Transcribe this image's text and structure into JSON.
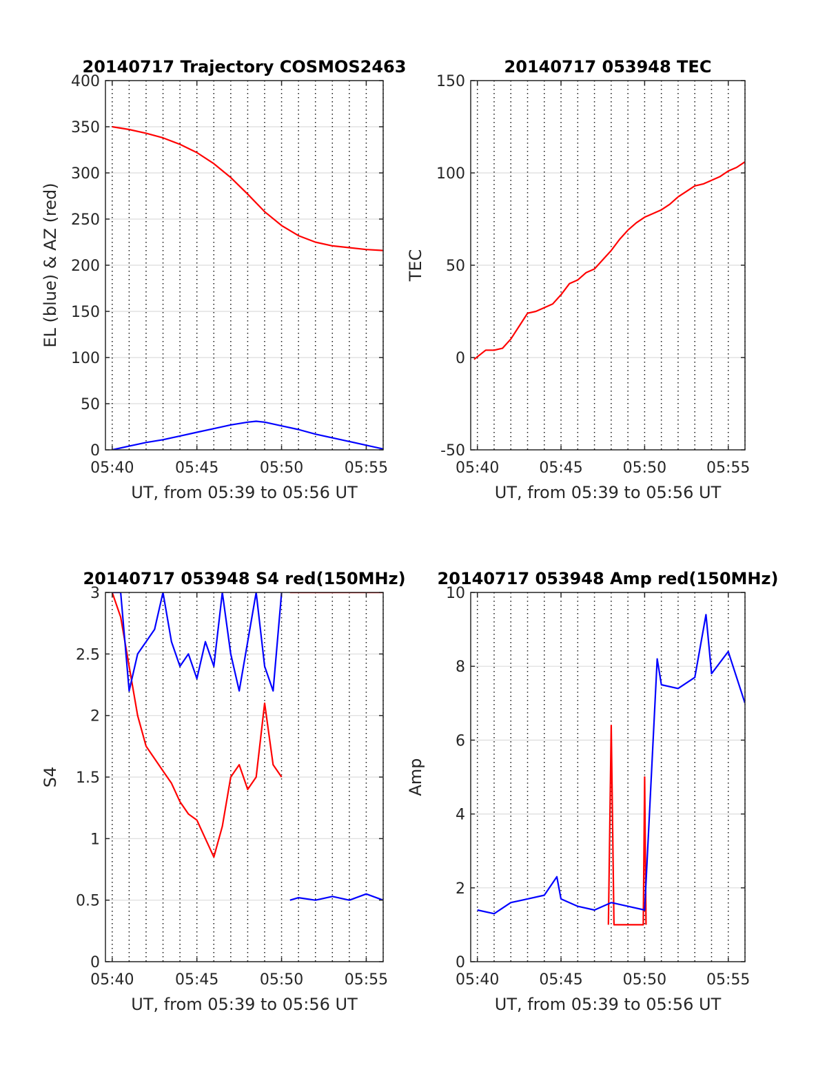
{
  "charts": [
    {
      "title": "20140717 Trajectory COSMOS2463",
      "xlabel": "UT, from 05:39 to 05:56 UT",
      "ylabel": "EL (blue) & AZ (red)"
    },
    {
      "title": "20140717 053948 TEC",
      "xlabel": "UT, from 05:39 to 05:56 UT",
      "ylabel": "TEC"
    },
    {
      "title": "20140717 053948 S4 red(150MHz)",
      "xlabel": "UT, from 05:39 to 05:56 UT",
      "ylabel": "S4"
    },
    {
      "title": "20140717 053948 Amp red(150MHz)",
      "xlabel": "UT, from 05:39 to 05:56 UT",
      "ylabel": "Amp"
    }
  ],
  "chart_data": [
    {
      "type": "line",
      "title": "20140717 Trajectory COSMOS2463",
      "xlabel": "UT, from 05:39 to 05:56 UT",
      "ylabel": "EL (blue) & AZ (red)",
      "xlim": [
        "05:39:36",
        "05:56:00"
      ],
      "ylim": [
        0,
        400
      ],
      "xticks": [
        "05:40",
        "05:45",
        "05:50",
        "05:55"
      ],
      "yticks": [
        0,
        50,
        100,
        150,
        200,
        250,
        300,
        350,
        400
      ],
      "grid": true,
      "series": [
        {
          "color": "#ff0000",
          "x": [
            "05:40",
            "05:41",
            "05:42",
            "05:43",
            "05:44",
            "05:45",
            "05:46",
            "05:47",
            "05:48",
            "05:49",
            "05:50",
            "05:51",
            "05:52",
            "05:53",
            "05:54",
            "05:55",
            "05:56"
          ],
          "y": [
            350,
            347,
            343,
            338,
            331,
            322,
            310,
            295,
            277,
            258,
            243,
            232,
            225,
            221,
            219,
            217,
            216
          ]
        },
        {
          "color": "#0000ff",
          "x": [
            "05:40",
            "05:41",
            "05:42",
            "05:43",
            "05:44",
            "05:45",
            "05:46",
            "05:47",
            "05:48",
            "05:48:30",
            "05:49",
            "05:50",
            "05:51",
            "05:52",
            "05:53",
            "05:54",
            "05:55",
            "05:56"
          ],
          "y": [
            0,
            4,
            8,
            11,
            15,
            19,
            23,
            27,
            30,
            31,
            30,
            26,
            22,
            17,
            13,
            9,
            5,
            1
          ]
        }
      ]
    },
    {
      "type": "line",
      "title": "20140717 053948 TEC",
      "xlabel": "UT, from 05:39 to 05:56 UT",
      "ylabel": "TEC",
      "xlim": [
        "05:39:36",
        "05:56:00"
      ],
      "ylim": [
        -50,
        150
      ],
      "xticks": [
        "05:40",
        "05:45",
        "05:50",
        "05:55"
      ],
      "yticks": [
        -50,
        0,
        50,
        100,
        150
      ],
      "grid": true,
      "series": [
        {
          "color": "#ff0000",
          "x": [
            "05:39:48",
            "05:40:30",
            "05:41:00",
            "05:41:30",
            "05:42:00",
            "05:42:30",
            "05:43:00",
            "05:43:30",
            "05:44:00",
            "05:44:30",
            "05:45:00",
            "05:45:30",
            "05:46:00",
            "05:46:30",
            "05:47:00",
            "05:47:30",
            "05:48:00",
            "05:48:30",
            "05:49:00",
            "05:49:30",
            "05:50:00",
            "05:50:30",
            "05:51:00",
            "05:51:30",
            "05:52:00",
            "05:52:30",
            "05:53:00",
            "05:53:30",
            "05:54:00",
            "05:54:30",
            "05:55:00",
            "05:55:30",
            "05:56:00"
          ],
          "y": [
            -1,
            4,
            4,
            5,
            10,
            17,
            24,
            25,
            27,
            29,
            34,
            40,
            42,
            46,
            48,
            53,
            58,
            64,
            69,
            73,
            76,
            78,
            80,
            83,
            87,
            90,
            93,
            94,
            96,
            98,
            101,
            103,
            106
          ]
        }
      ]
    },
    {
      "type": "line",
      "title": "20140717 053948 S4 red(150MHz)",
      "xlabel": "UT, from 05:39 to 05:56 UT",
      "ylabel": "S4",
      "xlim": [
        "05:39:36",
        "05:56:00"
      ],
      "ylim": [
        0,
        3
      ],
      "xticks": [
        "05:40",
        "05:45",
        "05:50",
        "05:55"
      ],
      "yticks": [
        0,
        0.5,
        1,
        1.5,
        2,
        2.5,
        3
      ],
      "grid": true,
      "series": [
        {
          "color": "#ff0000",
          "x": [
            "05:40:00",
            "05:40:30",
            "05:41:00",
            "05:41:30",
            "05:42:00",
            "05:42:30",
            "05:43:00",
            "05:43:30",
            "05:44:00",
            "05:44:30",
            "05:45:00",
            "05:45:30",
            "05:46:00",
            "05:46:30",
            "05:47:00",
            "05:47:30",
            "05:48:00",
            "05:48:30",
            "05:49:00",
            "05:49:30",
            "05:50:00"
          ],
          "y": [
            3,
            2.8,
            2.4,
            2.0,
            1.75,
            1.65,
            1.55,
            1.45,
            1.3,
            1.2,
            1.15,
            1.0,
            0.85,
            1.1,
            1.5,
            1.6,
            1.4,
            1.5,
            2.1,
            1.6,
            1.5
          ]
        },
        {
          "color": "#ff0000",
          "x": [
            "05:50:30",
            "05:51:00",
            "05:52:00",
            "05:53:00",
            "05:54:00",
            "05:55:00",
            "05:56:00"
          ],
          "y": [
            3,
            3,
            3,
            3,
            3,
            3,
            3
          ]
        },
        {
          "color": "#0000ff",
          "x": [
            "05:40:00",
            "05:40:30",
            "05:41:00",
            "05:41:30",
            "05:42:00",
            "05:42:30",
            "05:43:00",
            "05:43:30",
            "05:44:00",
            "05:44:30",
            "05:45:00",
            "05:45:30",
            "05:46:00",
            "05:46:30",
            "05:47:00",
            "05:47:30",
            "05:48:00",
            "05:48:30",
            "05:49:00",
            "05:49:30",
            "05:50:00"
          ],
          "y": [
            3,
            3,
            2.2,
            2.5,
            2.6,
            2.7,
            3,
            2.6,
            2.4,
            2.5,
            2.3,
            2.6,
            2.4,
            3,
            2.5,
            2.2,
            2.6,
            3,
            2.4,
            2.2,
            3
          ]
        },
        {
          "color": "#0000ff",
          "x": [
            "05:50:30",
            "05:51:00",
            "05:52:00",
            "05:53:00",
            "05:54:00",
            "05:55:00",
            "05:56:00"
          ],
          "y": [
            0.5,
            0.52,
            0.5,
            0.53,
            0.5,
            0.55,
            0.5
          ]
        }
      ]
    },
    {
      "type": "line",
      "title": "20140717 053948 Amp red(150MHz)",
      "xlabel": "UT, from 05:39 to 05:56 UT",
      "ylabel": "Amp",
      "xlim": [
        "05:39:36",
        "05:56:00"
      ],
      "ylim": [
        0,
        10
      ],
      "xticks": [
        "05:40",
        "05:45",
        "05:50",
        "05:55"
      ],
      "yticks": [
        0,
        2,
        4,
        6,
        8,
        10
      ],
      "grid": true,
      "series": [
        {
          "color": "#ff0000",
          "x": [
            "05:47:50",
            "05:48:00",
            "05:48:10",
            "05:49:55",
            "05:50:00",
            "05:50:05"
          ],
          "y": [
            1.0,
            6.4,
            1.0,
            1.0,
            5.0,
            1.0
          ]
        },
        {
          "color": "#0000ff",
          "x": [
            "05:40:00",
            "05:41:00",
            "05:42:00",
            "05:43:00",
            "05:44:00",
            "05:44:45",
            "05:45:00",
            "05:46:00",
            "05:47:00",
            "05:48:00",
            "05:49:00",
            "05:50:00",
            "05:50:45",
            "05:51:00",
            "05:52:00",
            "05:53:00",
            "05:53:40",
            "05:54:00",
            "05:55:00",
            "05:56:00"
          ],
          "y": [
            1.4,
            1.3,
            1.6,
            1.7,
            1.8,
            2.3,
            1.7,
            1.5,
            1.4,
            1.6,
            1.5,
            1.4,
            8.2,
            7.5,
            7.4,
            7.7,
            9.4,
            7.8,
            8.4,
            7.0
          ]
        }
      ]
    }
  ]
}
